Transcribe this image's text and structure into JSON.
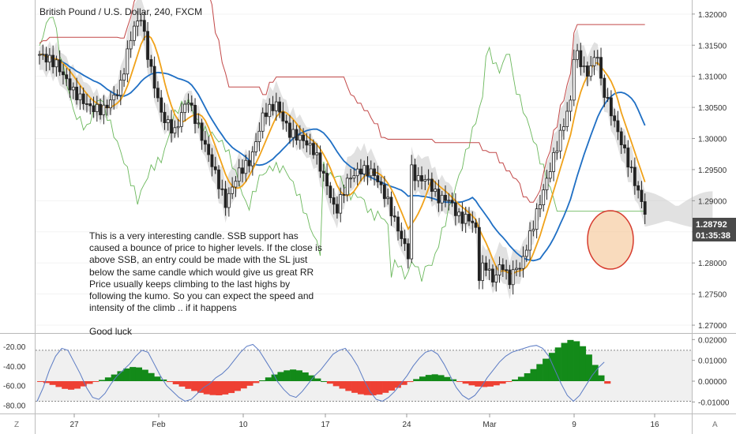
{
  "chart_data": {
    "type": "candlestick",
    "title": "British Pound / U.S. Dollar, 240, FXCM",
    "price_axis": {
      "ticks": [
        "1.32000",
        "1.31500",
        "1.31000",
        "1.30500",
        "1.30000",
        "1.29500",
        "1.29000",
        "1.28500",
        "1.28000",
        "1.27500",
        "1.27000"
      ],
      "ylim": [
        1.2695,
        1.3215
      ],
      "last_price_label": "1.28792",
      "countdown_label": "01:35:38",
      "last_price_color": "#4a4a4a"
    },
    "time_axis": {
      "ticks": [
        "27",
        "Feb",
        "10",
        "17",
        "24",
        "Mar",
        "9",
        "16"
      ]
    },
    "indicator_axis_left": {
      "ticks": [
        "-20.00",
        "-40.00",
        "-60.00",
        "-80.00"
      ],
      "ylim": [
        -82,
        -12
      ]
    },
    "indicator_axis_right": {
      "ticks": [
        "0.02000",
        "0.01000",
        "0.00000",
        "-0.01000"
      ],
      "ylim": [
        -0.0125,
        0.0205
      ]
    },
    "annotation": {
      "lines": [
        "This is a very interesting candle. SSB support has",
        "caused a bounce of price to higher levels. If the close is",
        "above SSB, an entry could be made with the SL just",
        "below the same candle which would give us great RR",
        "Price usually keeps climbing to the last highs by",
        "following the kumo. So you can expect the speed and",
        "intensity of the climb  .. if it happens"
      ],
      "signoff": "Good luck"
    },
    "bottom_left_label": "Z",
    "bottom_right_label": "A",
    "series": [
      {
        "name": "",
        "kind": "ohlc",
        "color_up": "#222222",
        "color_down": "#222222"
      },
      {
        "name": "",
        "kind": "tenkan",
        "color": "#f0a21a"
      },
      {
        "name": "",
        "kind": "kijun",
        "color": "#1f6fc4"
      },
      {
        "name": "",
        "kind": "chikou",
        "color": "#6bb85c"
      },
      {
        "name": "",
        "kind": "ssb",
        "color": "#c24848"
      },
      {
        "name": "",
        "kind": "cloud",
        "color": "#c9c9c9"
      },
      {
        "name": "",
        "kind": "histogram",
        "color_pos": "#138a19",
        "color_neg": "#ee4033"
      },
      {
        "name": "",
        "kind": "oscillator",
        "color": "#5b7bc4"
      }
    ],
    "histogram_values": [
      -0.0002,
      -0.0009,
      -0.0018,
      -0.0028,
      -0.0037,
      -0.0041,
      -0.0036,
      -0.0025,
      -0.0013,
      -0.0003,
      0.0006,
      0.0018,
      0.0032,
      0.0048,
      0.0061,
      0.0068,
      0.0066,
      0.0055,
      0.0039,
      0.0022,
      0.0008,
      -0.0004,
      -0.0015,
      -0.0026,
      -0.0037,
      -0.0047,
      -0.0056,
      -0.0063,
      -0.0067,
      -0.0068,
      -0.0064,
      -0.0057,
      -0.0047,
      -0.0035,
      -0.0022,
      -0.0009,
      0.0004,
      0.0018,
      0.0032,
      0.0044,
      0.0052,
      0.0056,
      0.0052,
      0.0042,
      0.0028,
      0.0013,
      0.0,
      -0.0012,
      -0.0024,
      -0.0036,
      -0.0047,
      -0.0056,
      -0.0063,
      -0.0067,
      -0.0068,
      -0.0064,
      -0.0056,
      -0.0045,
      -0.0032,
      -0.0018,
      -0.0004,
      0.001,
      0.0022,
      0.003,
      0.0033,
      0.0029,
      0.002,
      0.0009,
      -0.0002,
      -0.0012,
      -0.002,
      -0.0026,
      -0.0028,
      -0.0026,
      -0.002,
      -0.0012,
      -0.0003,
      0.0008,
      0.0021,
      0.0038,
      0.0058,
      0.0082,
      0.0108,
      0.0136,
      0.0162,
      0.0184,
      0.0198,
      0.0192,
      0.0168,
      0.0128,
      0.0078,
      0.0028,
      -0.0012
    ],
    "oscillator_values": [
      -76,
      -62,
      -44,
      -30,
      -22,
      -24,
      -36,
      -48,
      -62,
      -72,
      -74,
      -68,
      -58,
      -50,
      -44,
      -38,
      -30,
      -24,
      -26,
      -38,
      -50,
      -60,
      -66,
      -72,
      -76,
      -74,
      -68,
      -62,
      -58,
      -52,
      -48,
      -42,
      -34,
      -26,
      -20,
      -18,
      -24,
      -34,
      -44,
      -56,
      -64,
      -70,
      -72,
      -66,
      -58,
      -50,
      -44,
      -36,
      -28,
      -24,
      -22,
      -30,
      -40,
      -54,
      -66,
      -74,
      -76,
      -72,
      -66,
      -58,
      -50,
      -40,
      -32,
      -26,
      -24,
      -28,
      -38,
      -50,
      -62,
      -70,
      -74,
      -70,
      -62,
      -52,
      -44,
      -36,
      -30,
      -26,
      -24,
      -22,
      -20,
      -19,
      -22,
      -30,
      -44,
      -58,
      -70,
      -76,
      -70,
      -60,
      -50,
      -42,
      -36
    ]
  }
}
